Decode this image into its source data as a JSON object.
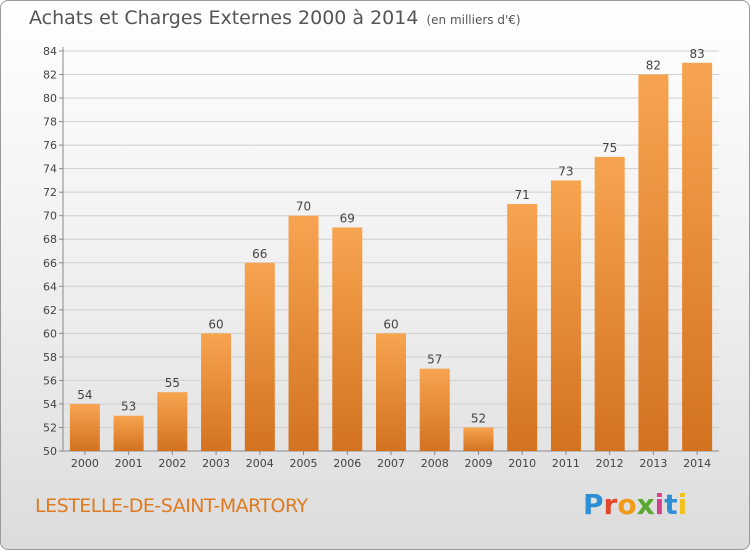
{
  "header": {
    "title": "Achats et Charges Externes 2000 à 2014",
    "unit": "(en milliers d'€)"
  },
  "footer": {
    "place": "LESTELLE-DE-SAINT-MARTORY",
    "logo_text": "Proxiti",
    "logo_colors": [
      "#2e8fd6",
      "#e0482c",
      "#f29a1a",
      "#5aa832",
      "#d63f8c",
      "#2e8fd6",
      "#f2c21a"
    ]
  },
  "colors": {
    "bar_top": "#f7a450",
    "bar_bottom": "#d3721f",
    "grid": "#d0d0d0",
    "axis_text": "#444444"
  },
  "chart_data": {
    "type": "bar",
    "title": "Achats et Charges Externes 2000 à 2014",
    "subtitle": "(en milliers d'€)",
    "categories": [
      "2000",
      "2001",
      "2002",
      "2003",
      "2004",
      "2005",
      "2006",
      "2007",
      "2008",
      "2009",
      "2010",
      "2011",
      "2012",
      "2013",
      "2014"
    ],
    "values": [
      54,
      53,
      55,
      60,
      66,
      70,
      69,
      60,
      57,
      52,
      71,
      73,
      75,
      82,
      83
    ],
    "ylim": [
      50,
      84
    ],
    "yticks": [
      50,
      52,
      54,
      56,
      58,
      60,
      62,
      64,
      66,
      68,
      70,
      72,
      74,
      76,
      78,
      80,
      82,
      84
    ],
    "grid": true,
    "data_labels": true
  }
}
